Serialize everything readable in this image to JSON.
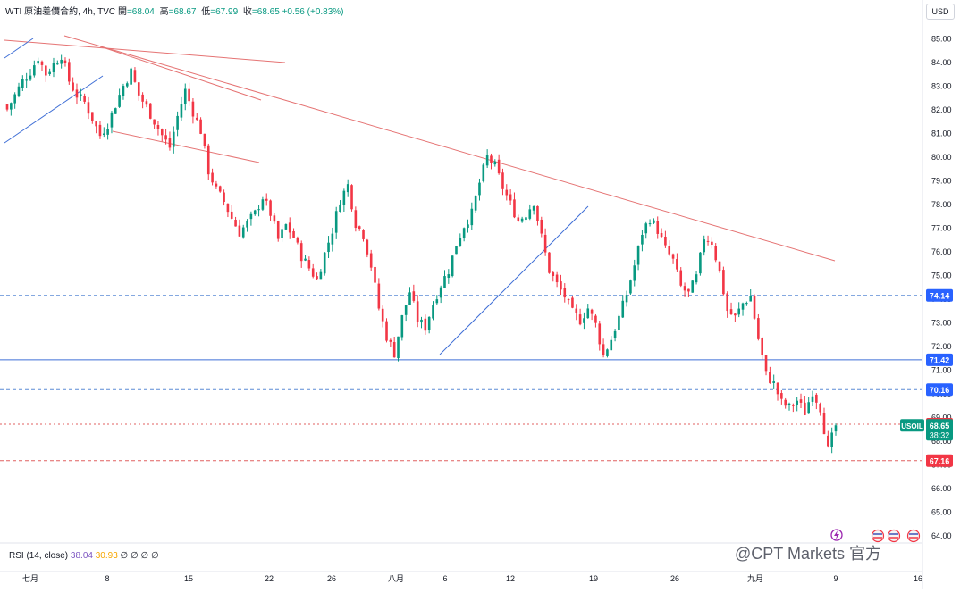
{
  "header": {
    "title": "WTI 原油差價合約, 4h, TVC",
    "open_label": "開",
    "open_value": "=68.04",
    "high_label": "高",
    "high_value": "=68.67",
    "low_label": "低",
    "low_value": "=67.99",
    "close_label": "收",
    "close_value": "=68.65 +0.56 (+0.83%)"
  },
  "currency_button": "USD",
  "indicator": {
    "label": "RSI (14, close)",
    "value1": "38.04",
    "value2": "30.93",
    "extra": "∅ ∅ ∅ ∅"
  },
  "price_tags": {
    "symbol": "USOIL",
    "last": "68.65",
    "countdown": "38:32",
    "l1": "74.14",
    "l2": "71.42",
    "l3": "70.16",
    "l4": "68.70",
    "l5": "67.16"
  },
  "watermark": "@CPT Markets 官方",
  "colors": {
    "up": "#089981",
    "down": "#f23645",
    "trend_red": "#e57373",
    "trend_blue": "#3f6fd6",
    "dash_blue": "#5b8bd6",
    "dash_red": "#e06060"
  },
  "chart_data": {
    "type": "candlestick",
    "symbol": "WTI 原油差價合約",
    "timeframe": "4h",
    "ylim": [
      63.5,
      86.0
    ],
    "y_ticks": [
      "85.00",
      "84.00",
      "83.00",
      "82.00",
      "81.00",
      "80.00",
      "79.00",
      "78.00",
      "77.00",
      "76.00",
      "75.00",
      "74.00",
      "73.00",
      "72.00",
      "71.00",
      "70.00",
      "69.00",
      "68.00",
      "67.00",
      "66.00",
      "65.00",
      "64.00"
    ],
    "x_ticks": [
      "七月",
      "8",
      "15",
      "22",
      "26",
      "八月",
      "6",
      "12",
      "19",
      "26",
      "九月",
      "9",
      "16"
    ],
    "close_path": [
      82.0,
      82.6,
      83.2,
      83.6,
      84.2,
      83.5,
      83.9,
      84.3,
      83.2,
      82.6,
      82.3,
      81.6,
      80.9,
      81.4,
      82.2,
      83.0,
      83.6,
      82.6,
      82.1,
      81.5,
      80.9,
      80.4,
      81.7,
      82.8,
      81.9,
      81.1,
      79.4,
      78.6,
      78.1,
      77.4,
      76.8,
      77.2,
      77.6,
      78.3,
      77.6,
      76.5,
      77.1,
      76.6,
      75.8,
      75.3,
      74.8,
      75.9,
      76.9,
      78.2,
      78.8,
      77.2,
      76.7,
      75.4,
      73.6,
      72.4,
      71.7,
      73.2,
      74.3,
      73.1,
      72.8,
      73.8,
      74.6,
      75.2,
      76.3,
      77.1,
      77.6,
      78.9,
      80.0,
      79.6,
      78.7,
      78.0,
      77.3,
      77.6,
      78.1,
      76.6,
      75.2,
      74.6,
      74.1,
      73.4,
      73.1,
      73.6,
      72.9,
      71.6,
      72.3,
      73.2,
      74.2,
      75.4,
      76.8,
      77.4,
      76.9,
      76.1,
      75.6,
      74.5,
      74.2,
      74.9,
      76.6,
      76.4,
      75.1,
      73.5,
      73.2,
      73.8,
      74.1,
      72.3,
      70.8,
      70.4,
      69.6,
      69.4,
      69.7,
      69.2,
      70.1,
      69.4,
      67.6,
      68.65
    ],
    "horizontal_levels": [
      {
        "price": 74.14,
        "style": "dashed",
        "color": "#5b8bd6"
      },
      {
        "price": 71.42,
        "style": "solid",
        "color": "#3f6fd6"
      },
      {
        "price": 70.16,
        "style": "dashed",
        "color": "#5b8bd6"
      },
      {
        "price": 68.7,
        "style": "dotted",
        "color": "#e06060"
      },
      {
        "price": 67.16,
        "style": "dashed",
        "color": "#e06060"
      }
    ],
    "last_price": 68.65,
    "change": "+0.56 (+0.83%)"
  }
}
